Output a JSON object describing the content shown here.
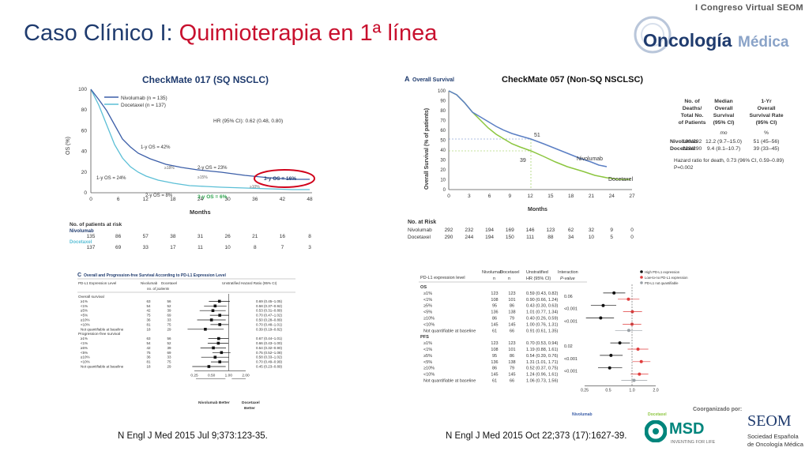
{
  "slide": {
    "title_prefix": "Caso Clínico I: ",
    "title_highlight": "Quimioterapia en 1ª línea"
  },
  "branding": {
    "congress": "I Congreso Virtual SEOM",
    "logo_text_1": "Oncología",
    "logo_text_2": "Médica",
    "sponsor_label": "Coorganizado por:",
    "msd": "MSD",
    "msd_tagline": "INVENTING FOR LIFE",
    "seom": "SEOM",
    "seom_sub1": "Sociedad Española",
    "seom_sub2": "de Oncología Médica"
  },
  "citations": {
    "left": "N Engl J Med 2015 Jul 9;373:123-35.",
    "right": "N Engl J Med 2015 Oct 22;373 (17):1627-39."
  },
  "km017": {
    "header": "CheckMate 017 (SQ NSCLC)",
    "ylabel": "OS (%)",
    "xlabel": "Months",
    "yticks": [
      "0",
      "20",
      "40",
      "60",
      "80",
      "100"
    ],
    "xticks": [
      "0",
      "6",
      "12",
      "18",
      "24",
      "30",
      "36",
      "42",
      "48"
    ],
    "legend_nivo": "Nivolumab (n = 135)",
    "legend_doce": "Docetaxel (n = 137)",
    "hr": "HR (95% CI): 0.62 (0.48, 0.80)",
    "ann_1y_nivo": "1-y OS = 42%",
    "ann_1y_doce": "1-y OS = 24%",
    "ann_2y_nivo": "2-y OS = 23%",
    "ann_2y_doce": "2-y OS = 8%",
    "ann_3y_nivo": "3-y OS = 16%",
    "ann_3y_doce": "3-y OS = 6%",
    "ann_18": "≥18%",
    "ann_15": "≥15%",
    "ann_10": "≥10%",
    "risk_header": "No. of patients at risk",
    "risk_nivo_label": "Nivolumab",
    "risk_doce_label": "Docetaxel",
    "risk_nivo": [
      "135",
      "86",
      "57",
      "38",
      "31",
      "26",
      "21",
      "16",
      "8"
    ],
    "risk_doce": [
      "137",
      "69",
      "33",
      "17",
      "11",
      "10",
      "8",
      "7",
      "3"
    ],
    "colors": {
      "nivo": "#3b5ea8",
      "doce": "#5bbfd6",
      "highlight": "#d0021b"
    }
  },
  "km057": {
    "panel_label": "A",
    "panel_title": "Overall Survival",
    "header": "CheckMate 057 (Non-SQ NSCLSC)",
    "ylabel": "Overall Survival (% of patients)",
    "xlabel": "Months",
    "yticks": [
      "0",
      "10",
      "20",
      "30",
      "40",
      "50",
      "60",
      "70",
      "80",
      "90",
      "100"
    ],
    "xticks": [
      "0",
      "3",
      "6",
      "9",
      "12",
      "15",
      "18",
      "21",
      "24",
      "27"
    ],
    "label_51": "51",
    "label_39": "39",
    "label_nivo": "Nivolumab",
    "label_doce": "Docetaxel",
    "table_h1": [
      "No. of",
      "Deaths/",
      "Total No.",
      "of Patients"
    ],
    "table_h2": [
      "Median",
      "Overall",
      "Survival",
      "(95% CI)"
    ],
    "table_h3": [
      "1-Yr",
      "Overall",
      "Survival Rate",
      "(95% CI)"
    ],
    "table_unit2": "mo",
    "table_unit3": "%",
    "row_nivo": [
      "Nivolumab",
      "190/292",
      "12.2 (9.7–15.0)",
      "51 (45–56)"
    ],
    "row_doce": [
      "Docetaxel",
      "223/290",
      "9.4 (8.1–10.7)",
      "39 (33–45)"
    ],
    "hr": "Hazard ratio for death, 0.73 (96% CI, 0.59–0.89)",
    "p": "P=0.002",
    "risk_header": "No. at Risk",
    "risk_nivo_label": "Nivolumab",
    "risk_doce_label": "Docetaxel",
    "risk_nivo": [
      "292",
      "232",
      "194",
      "169",
      "146",
      "123",
      "62",
      "32",
      "9",
      "0"
    ],
    "risk_doce": [
      "290",
      "244",
      "194",
      "150",
      "111",
      "88",
      "34",
      "10",
      "5",
      "0"
    ],
    "colors": {
      "nivo": "#5b7fc4",
      "doce": "#8cc63f"
    }
  },
  "forest017": {
    "panel_label": "C",
    "title": "Overall and Progression-free Survival According to PD-L1 Expression Level",
    "col1": "PD-L1 Expression Level",
    "col2": "Nivolumab",
    "col3": "Docetaxel",
    "col_sub": "no. of patients",
    "col4": "Unstratified Hazard Ratio (95% CI)",
    "section1": "Overall survival",
    "section2": "Progression-free survival",
    "rows_os": [
      [
        "≥1%",
        "63",
        "56",
        "0.69 (0.45–1.05)"
      ],
      [
        "<1%",
        "54",
        "52",
        "0.58 (0.37–0.92)"
      ],
      [
        "≥5%",
        "42",
        "39",
        "0.53 (0.31–0.89)"
      ],
      [
        "<5%",
        "75",
        "69",
        "0.70 (0.47–1.02)"
      ],
      [
        "≥10%",
        "36",
        "33",
        "0.50 (0.28–0.89)"
      ],
      [
        "<10%",
        "81",
        "75",
        "0.70 (0.48–1.01)"
      ],
      [
        "Not quantifiable at baseline",
        "18",
        "29",
        "0.39 (0.19–0.82)"
      ]
    ],
    "rows_pfs": [
      [
        "≥1%",
        "63",
        "56",
        "0.67 (0.44–1.01)"
      ],
      [
        "<1%",
        "54",
        "52",
        "0.66 (0.43–1.00)"
      ],
      [
        "≥5%",
        "42",
        "39",
        "0.54 (0.32–0.90)"
      ],
      [
        "<5%",
        "75",
        "69",
        "0.75 (0.52–1.08)"
      ],
      [
        "≥10%",
        "36",
        "33",
        "0.58 (0.33–1.02)"
      ],
      [
        "<10%",
        "81",
        "75",
        "0.70 (0.49–0.99)"
      ],
      [
        "Not quantifiable at baseline",
        "18",
        "29",
        "0.45 (0.23–0.89)"
      ]
    ],
    "xticks": [
      "0.25",
      "0.50",
      "1.00",
      "2.00"
    ],
    "better_left": "Nivolumab Better",
    "better_right": [
      "Docetaxel",
      "Better"
    ]
  },
  "forest057": {
    "col1": "PD-L1 expression level",
    "col2": [
      "Nivolumab",
      "n"
    ],
    "col3": [
      "Docetaxel",
      "n"
    ],
    "col4": [
      "Unstratified",
      "HR (95% CI)"
    ],
    "col5": [
      "Interaction",
      "P-value"
    ],
    "section1": "OS",
    "section2": "PFS",
    "rows_os": [
      [
        "≥1%",
        "123",
        "123",
        "0.59 (0.43, 0.82)"
      ],
      [
        "<1%",
        "108",
        "101",
        "0.90 (0.66, 1.24)"
      ],
      [
        "≥5%",
        "95",
        "86",
        "0.43 (0.30, 0.63)"
      ],
      [
        "<5%",
        "136",
        "138",
        "1.01 (0.77, 1.34)"
      ],
      [
        "≥10%",
        "86",
        "79",
        "0.40 (0.26, 0.59)"
      ],
      [
        "<10%",
        "145",
        "145",
        "1.00 (0.76, 1.31)"
      ],
      [
        "Not quantifiable at baseline",
        "61",
        "66",
        "0.91 (0.61, 1.35)"
      ]
    ],
    "rows_pfs": [
      [
        "≥1%",
        "123",
        "123",
        "0.70 (0.53, 0.94)"
      ],
      [
        "<1%",
        "108",
        "101",
        "1.19 (0.88, 1.61)"
      ],
      [
        "≥5%",
        "95",
        "86",
        "0.54 (0.39, 0.76)"
      ],
      [
        "<5%",
        "136",
        "138",
        "1.31 (1.01, 1.71)"
      ],
      [
        "≥10%",
        "86",
        "79",
        "0.52 (0.37, 0.75)"
      ],
      [
        "<10%",
        "145",
        "145",
        "1.24 (0.96, 1.61)"
      ],
      [
        "Not quantifiable at baseline",
        "61",
        "66",
        "1.06 (0.73, 1.56)"
      ]
    ],
    "pvals_os": [
      "0.06",
      "<0.001",
      "<0.001"
    ],
    "pvals_pfs": [
      "0.02",
      "<0.001",
      "<0.001"
    ],
    "legend": [
      "High PD-L1 expression",
      "Low-to-no PD-L1 expression",
      "PD-L1 not quantifiable"
    ],
    "xticks": [
      "0.25",
      "0.5",
      "1.0",
      "2.0"
    ],
    "better_left": "Nivolumab",
    "better_right": "Docetaxel",
    "colors": {
      "high": "#111111",
      "low": "#e03c3c",
      "nq": "#9aa0a6"
    }
  }
}
